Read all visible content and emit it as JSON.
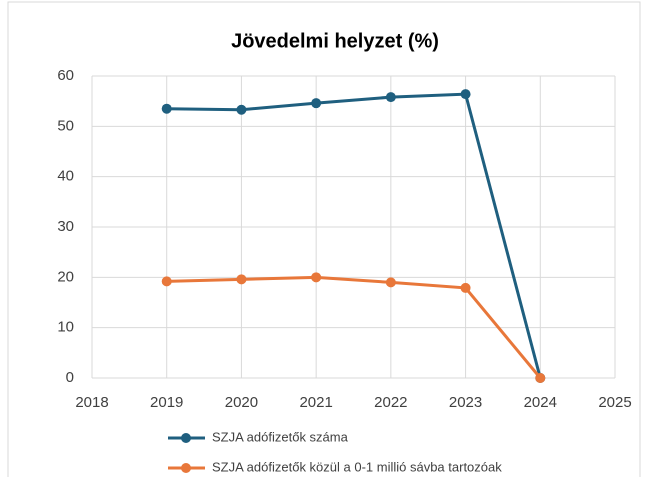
{
  "chart_data": {
    "type": "line",
    "title": "Jövedelmi helyzet (%)",
    "x": [
      2019,
      2020,
      2021,
      2022,
      2023,
      2024
    ],
    "series": [
      {
        "name": "SZJA adófizetők száma",
        "color": "#1f5f7f",
        "values": [
          53.5,
          53.3,
          54.6,
          55.8,
          56.4,
          0
        ]
      },
      {
        "name": "SZJA adófizetők közül a 0-1 millió sávba tartozóak",
        "color": "#e8773a",
        "values": [
          19.2,
          19.6,
          20.0,
          19.0,
          17.9,
          0
        ]
      }
    ],
    "xlim": [
      2018,
      2025
    ],
    "xticks": [
      2018,
      2019,
      2020,
      2021,
      2022,
      2023,
      2024,
      2025
    ],
    "ylim": [
      0,
      60
    ],
    "yticks": [
      0,
      10,
      20,
      30,
      40,
      50,
      60
    ],
    "grid": true
  }
}
